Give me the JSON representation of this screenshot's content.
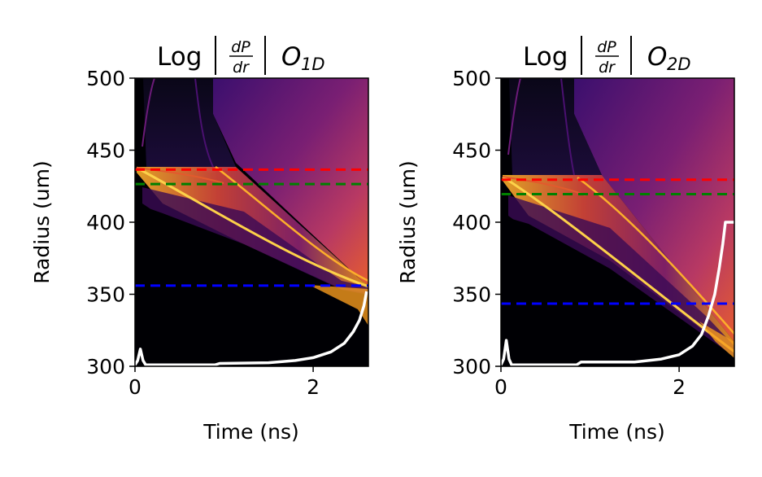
{
  "chart_data": [
    {
      "type": "heatmap",
      "title": {
        "prefix": "Log",
        "numerator": "dP",
        "denominator": "dr",
        "symbol": "O",
        "subscript": "1D"
      },
      "xlabel": "Time (ns)",
      "ylabel": "Radius (um)",
      "xlim": [
        0,
        2.62
      ],
      "ylim": [
        300,
        500
      ],
      "xticks": [
        0,
        2
      ],
      "yticks": [
        300,
        350,
        400,
        450,
        500
      ],
      "colormap": "inferno",
      "reference_lines": [
        {
          "name": "red-line",
          "y": 436.5,
          "color": "#ff0000"
        },
        {
          "name": "green-line",
          "y": 426.5,
          "color": "#008000"
        },
        {
          "name": "blue-line",
          "y": 356,
          "color": "#0000ff"
        }
      ],
      "pulse": {
        "color": "#ffffff",
        "x": [
          0,
          0.03,
          0.06,
          0.09,
          0.12,
          0.15,
          0.9,
          0.95,
          1.5,
          1.8,
          2.0,
          2.2,
          2.35,
          2.45,
          2.52,
          2.57,
          2.6
        ],
        "y": [
          301,
          304,
          312,
          304,
          301,
          301,
          301,
          302,
          302.5,
          304,
          306,
          310,
          316,
          324,
          332,
          342,
          352
        ]
      }
    },
    {
      "type": "heatmap",
      "title": {
        "prefix": "Log",
        "numerator": "dP",
        "denominator": "dr",
        "symbol": "O",
        "subscript": "2D"
      },
      "xlabel": "Time (ns)",
      "ylabel": "Radius (um)",
      "xlim": [
        0,
        2.62
      ],
      "ylim": [
        300,
        500
      ],
      "xticks": [
        0,
        2
      ],
      "yticks": [
        300,
        350,
        400,
        450,
        500
      ],
      "colormap": "inferno",
      "reference_lines": [
        {
          "name": "red-line",
          "y": 429.5,
          "color": "#ff0000"
        },
        {
          "name": "green-line",
          "y": 419.5,
          "color": "#008000"
        },
        {
          "name": "blue-line",
          "y": 343.5,
          "color": "#0000ff"
        }
      ],
      "pulse": {
        "color": "#ffffff",
        "x": [
          0,
          0.03,
          0.06,
          0.09,
          0.12,
          0.15,
          0.85,
          0.9,
          1.5,
          1.8,
          2.0,
          2.15,
          2.25,
          2.33,
          2.4,
          2.45,
          2.49,
          2.52,
          2.62
        ],
        "y": [
          301,
          305,
          318,
          305,
          301,
          301,
          301,
          303,
          303,
          305,
          308,
          314,
          322,
          335,
          350,
          368,
          385,
          400,
          400
        ]
      }
    }
  ]
}
